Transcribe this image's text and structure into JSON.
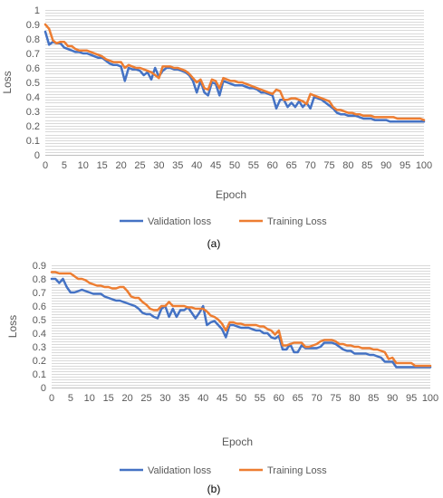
{
  "colors": {
    "validation": "#4472c4",
    "training": "#ed7d31",
    "grid": "#d9d9d9"
  },
  "chart_data": [
    {
      "type": "line",
      "caption": "(a)",
      "xlabel": "Epoch",
      "ylabel": "Loss",
      "xlim": [
        0,
        100
      ],
      "ylim": [
        0,
        1
      ],
      "x_ticks": [
        0,
        5,
        10,
        15,
        20,
        25,
        30,
        35,
        40,
        45,
        50,
        55,
        60,
        65,
        70,
        75,
        80,
        85,
        90,
        95,
        100
      ],
      "y_ticks": [
        0,
        0.1,
        0.2,
        0.3,
        0.4,
        0.5,
        0.6,
        0.7,
        0.8,
        0.9,
        1
      ],
      "grid": true,
      "legend": "bottom",
      "x": [
        0,
        1,
        2,
        3,
        4,
        5,
        6,
        7,
        8,
        9,
        10,
        11,
        12,
        13,
        14,
        15,
        16,
        17,
        18,
        19,
        20,
        21,
        22,
        23,
        24,
        25,
        26,
        27,
        28,
        29,
        30,
        31,
        32,
        33,
        34,
        35,
        36,
        37,
        38,
        39,
        40,
        41,
        42,
        43,
        44,
        45,
        46,
        47,
        48,
        49,
        50,
        51,
        52,
        53,
        54,
        55,
        56,
        57,
        58,
        59,
        60,
        61,
        62,
        63,
        64,
        65,
        66,
        67,
        68,
        69,
        70,
        71,
        72,
        73,
        74,
        75,
        76,
        77,
        78,
        79,
        80,
        81,
        82,
        83,
        84,
        85,
        86,
        87,
        88,
        89,
        90,
        91,
        92,
        93,
        94,
        95,
        96,
        97,
        98,
        99,
        100
      ],
      "series": [
        {
          "name": "Validation loss",
          "color": "#4472c4",
          "values": [
            0.85,
            0.76,
            0.78,
            0.77,
            0.77,
            0.74,
            0.73,
            0.72,
            0.71,
            0.71,
            0.7,
            0.7,
            0.69,
            0.68,
            0.67,
            0.67,
            0.65,
            0.63,
            0.62,
            0.62,
            0.61,
            0.51,
            0.6,
            0.59,
            0.59,
            0.58,
            0.55,
            0.57,
            0.52,
            0.6,
            0.54,
            0.58,
            0.6,
            0.6,
            0.59,
            0.59,
            0.58,
            0.57,
            0.55,
            0.51,
            0.43,
            0.51,
            0.43,
            0.41,
            0.5,
            0.49,
            0.41,
            0.51,
            0.5,
            0.49,
            0.48,
            0.48,
            0.48,
            0.47,
            0.46,
            0.46,
            0.45,
            0.43,
            0.43,
            0.42,
            0.41,
            0.32,
            0.38,
            0.38,
            0.33,
            0.36,
            0.33,
            0.37,
            0.33,
            0.36,
            0.32,
            0.4,
            0.39,
            0.38,
            0.36,
            0.34,
            0.32,
            0.29,
            0.28,
            0.28,
            0.27,
            0.27,
            0.27,
            0.26,
            0.25,
            0.25,
            0.25,
            0.24,
            0.24,
            0.24,
            0.24,
            0.23,
            0.23,
            0.23,
            0.23,
            0.23,
            0.23,
            0.23,
            0.23,
            0.23,
            0.23
          ]
        },
        {
          "name": "Training Loss",
          "color": "#ed7d31",
          "values": [
            0.9,
            0.87,
            0.79,
            0.77,
            0.78,
            0.78,
            0.75,
            0.75,
            0.73,
            0.72,
            0.72,
            0.72,
            0.71,
            0.7,
            0.69,
            0.68,
            0.66,
            0.65,
            0.64,
            0.64,
            0.64,
            0.6,
            0.62,
            0.61,
            0.6,
            0.6,
            0.59,
            0.58,
            0.57,
            0.55,
            0.53,
            0.61,
            0.61,
            0.61,
            0.6,
            0.6,
            0.59,
            0.58,
            0.56,
            0.53,
            0.5,
            0.52,
            0.46,
            0.45,
            0.52,
            0.51,
            0.46,
            0.53,
            0.52,
            0.51,
            0.51,
            0.5,
            0.5,
            0.49,
            0.48,
            0.47,
            0.46,
            0.45,
            0.44,
            0.43,
            0.42,
            0.45,
            0.44,
            0.38,
            0.38,
            0.39,
            0.39,
            0.38,
            0.37,
            0.35,
            0.42,
            0.41,
            0.4,
            0.39,
            0.38,
            0.37,
            0.33,
            0.31,
            0.31,
            0.3,
            0.29,
            0.29,
            0.28,
            0.28,
            0.27,
            0.27,
            0.27,
            0.26,
            0.26,
            0.26,
            0.26,
            0.26,
            0.26,
            0.25,
            0.25,
            0.25,
            0.25,
            0.25,
            0.25,
            0.25,
            0.24
          ]
        }
      ]
    },
    {
      "type": "line",
      "caption": "(b)",
      "xlabel": "Epoch",
      "ylabel": "Loss",
      "xlim": [
        0,
        100
      ],
      "ylim": [
        0,
        0.9
      ],
      "x_ticks": [
        0,
        5,
        10,
        15,
        20,
        25,
        30,
        35,
        40,
        45,
        50,
        55,
        60,
        65,
        70,
        75,
        80,
        85,
        90,
        95,
        100
      ],
      "y_ticks": [
        0,
        0.1,
        0.2,
        0.3,
        0.4,
        0.5,
        0.6,
        0.7,
        0.8,
        0.9
      ],
      "grid": true,
      "legend": "bottom",
      "x": [
        0,
        1,
        2,
        3,
        4,
        5,
        6,
        7,
        8,
        9,
        10,
        11,
        12,
        13,
        14,
        15,
        16,
        17,
        18,
        19,
        20,
        21,
        22,
        23,
        24,
        25,
        26,
        27,
        28,
        29,
        30,
        31,
        32,
        33,
        34,
        35,
        36,
        37,
        38,
        39,
        40,
        41,
        42,
        43,
        44,
        45,
        46,
        47,
        48,
        49,
        50,
        51,
        52,
        53,
        54,
        55,
        56,
        57,
        58,
        59,
        60,
        61,
        62,
        63,
        64,
        65,
        66,
        67,
        68,
        69,
        70,
        71,
        72,
        73,
        74,
        75,
        76,
        77,
        78,
        79,
        80,
        81,
        82,
        83,
        84,
        85,
        86,
        87,
        88,
        89,
        90,
        91,
        92,
        93,
        94,
        95,
        96,
        97,
        98,
        99,
        100
      ],
      "series": [
        {
          "name": "Validation loss",
          "color": "#4472c4",
          "values": [
            0.8,
            0.8,
            0.77,
            0.8,
            0.74,
            0.7,
            0.7,
            0.71,
            0.72,
            0.71,
            0.7,
            0.69,
            0.69,
            0.69,
            0.67,
            0.66,
            0.65,
            0.64,
            0.64,
            0.63,
            0.62,
            0.61,
            0.6,
            0.58,
            0.55,
            0.54,
            0.54,
            0.52,
            0.51,
            0.58,
            0.6,
            0.52,
            0.58,
            0.52,
            0.57,
            0.57,
            0.59,
            0.55,
            0.51,
            0.55,
            0.6,
            0.46,
            0.48,
            0.49,
            0.46,
            0.43,
            0.37,
            0.46,
            0.46,
            0.45,
            0.44,
            0.44,
            0.44,
            0.43,
            0.42,
            0.42,
            0.4,
            0.4,
            0.37,
            0.36,
            0.38,
            0.28,
            0.28,
            0.32,
            0.26,
            0.26,
            0.31,
            0.29,
            0.29,
            0.29,
            0.29,
            0.3,
            0.33,
            0.33,
            0.33,
            0.32,
            0.3,
            0.28,
            0.27,
            0.27,
            0.25,
            0.25,
            0.25,
            0.25,
            0.24,
            0.24,
            0.23,
            0.22,
            0.19,
            0.19,
            0.19,
            0.15,
            0.15,
            0.15,
            0.15,
            0.15,
            0.15,
            0.15,
            0.15,
            0.15,
            0.15
          ]
        },
        {
          "name": "Training Loss",
          "color": "#ed7d31",
          "values": [
            0.85,
            0.85,
            0.84,
            0.84,
            0.84,
            0.84,
            0.82,
            0.8,
            0.8,
            0.79,
            0.77,
            0.76,
            0.75,
            0.75,
            0.74,
            0.74,
            0.73,
            0.73,
            0.74,
            0.74,
            0.71,
            0.67,
            0.66,
            0.66,
            0.63,
            0.61,
            0.58,
            0.57,
            0.57,
            0.6,
            0.6,
            0.63,
            0.6,
            0.6,
            0.6,
            0.6,
            0.59,
            0.59,
            0.58,
            0.58,
            0.58,
            0.56,
            0.53,
            0.52,
            0.5,
            0.47,
            0.42,
            0.48,
            0.48,
            0.47,
            0.47,
            0.46,
            0.46,
            0.46,
            0.46,
            0.45,
            0.45,
            0.43,
            0.42,
            0.39,
            0.42,
            0.31,
            0.31,
            0.32,
            0.33,
            0.33,
            0.33,
            0.3,
            0.3,
            0.31,
            0.32,
            0.34,
            0.35,
            0.35,
            0.35,
            0.34,
            0.32,
            0.32,
            0.31,
            0.31,
            0.3,
            0.3,
            0.29,
            0.29,
            0.29,
            0.28,
            0.28,
            0.27,
            0.26,
            0.21,
            0.22,
            0.18,
            0.18,
            0.18,
            0.18,
            0.18,
            0.16,
            0.16,
            0.16,
            0.16,
            0.16
          ]
        }
      ]
    }
  ]
}
